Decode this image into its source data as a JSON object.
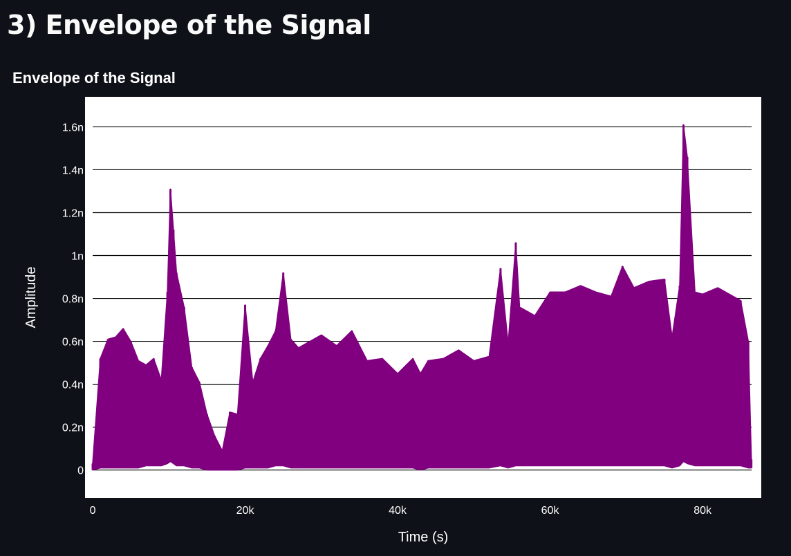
{
  "page": {
    "heading": "3) Envelope of the Signal"
  },
  "colors": {
    "background": "#0e1117",
    "plot_area": "#ffffff",
    "series": "#800080",
    "gridline": "#000000",
    "text": "#ffffff"
  },
  "chart_data": {
    "type": "area",
    "title": "Envelope of the Signal",
    "xlabel": "Time (s)",
    "ylabel": "Amplitude",
    "xlim": [
      -1000,
      87700
    ],
    "ylim": [
      -1.3e-10,
      1.74e-09
    ],
    "x_ticks": [
      0,
      20000,
      40000,
      60000,
      80000
    ],
    "x_tick_labels": [
      "0",
      "20k",
      "40k",
      "60k",
      "80k"
    ],
    "y_ticks": [
      0,
      2e-10,
      4e-10,
      6e-10,
      8e-10,
      1e-09,
      1.2e-09,
      1.4e-09,
      1.6e-09
    ],
    "y_tick_labels": [
      "0",
      "0.2n",
      "0.4n",
      "0.6n",
      "0.8n",
      "1n",
      "1.2n",
      "1.4n",
      "1.6n"
    ],
    "grid": "horizontal",
    "legend": "none",
    "series": [
      {
        "x": [
          0,
          1000,
          2000,
          3000,
          4000,
          5000,
          6000,
          7000,
          8000,
          9000,
          9800,
          10200,
          10600,
          11000,
          12000,
          13000,
          14000,
          15000,
          16000,
          17000,
          18000,
          19000,
          20000,
          21000,
          22000,
          23000,
          24000,
          25000,
          26000,
          27000,
          28000,
          30000,
          32000,
          34000,
          36000,
          38000,
          40000,
          42000,
          43000,
          44000,
          46000,
          48000,
          50000,
          52000,
          53500,
          54500,
          55500,
          56000,
          58000,
          60000,
          62000,
          64000,
          66000,
          68000,
          69500,
          71000,
          73000,
          75000,
          76000,
          77000,
          77500,
          78000,
          79000,
          80000,
          82000,
          84000,
          85000,
          86000,
          86400
        ],
        "upper": [
          3e-11,
          5.2e-10,
          6.1e-10,
          6.2e-10,
          6.6e-10,
          6e-10,
          5.1e-10,
          4.9e-10,
          5.2e-10,
          4.2e-10,
          8.3e-10,
          1.31e-09,
          1.12e-09,
          9.2e-10,
          7.6e-10,
          4.8e-10,
          4.1e-10,
          2.6e-10,
          1.6e-10,
          9e-11,
          2.7e-10,
          2.6e-10,
          7.7e-10,
          4.1e-10,
          5.2e-10,
          5.8e-10,
          6.5e-10,
          9.2e-10,
          6.1e-10,
          5.7e-10,
          5.9e-10,
          6.3e-10,
          5.8e-10,
          6.5e-10,
          5.1e-10,
          5.2e-10,
          4.5e-10,
          5.2e-10,
          4.5e-10,
          5.1e-10,
          5.2e-10,
          5.6e-10,
          5.1e-10,
          5.3e-10,
          9.4e-10,
          5.9e-10,
          1.06e-09,
          7.6e-10,
          7.2e-10,
          8.3e-10,
          8.3e-10,
          8.6e-10,
          8.3e-10,
          8.1e-10,
          9.5e-10,
          8.5e-10,
          8.8e-10,
          8.9e-10,
          6.2e-10,
          8.6e-10,
          1.61e-09,
          1.46e-09,
          8.3e-10,
          8.2e-10,
          8.5e-10,
          8.1e-10,
          7.9e-10,
          6e-10,
          5e-11
        ],
        "lower": [
          0,
          1e-11,
          1e-11,
          1e-11,
          1e-11,
          1e-11,
          1e-11,
          2e-11,
          2e-11,
          2e-11,
          3e-11,
          4e-11,
          3e-11,
          2e-11,
          2e-11,
          1e-11,
          1e-11,
          0,
          0,
          0,
          0,
          0,
          1e-11,
          1e-11,
          1e-11,
          1e-11,
          2e-11,
          2e-11,
          1e-11,
          1e-11,
          1e-11,
          1e-11,
          1e-11,
          1e-11,
          1e-11,
          1e-11,
          1e-11,
          1e-11,
          0,
          1e-11,
          1e-11,
          1e-11,
          1e-11,
          1e-11,
          2e-11,
          1e-11,
          2e-11,
          2e-11,
          2e-11,
          2e-11,
          2e-11,
          2e-11,
          2e-11,
          2e-11,
          2e-11,
          2e-11,
          2e-11,
          2e-11,
          1e-11,
          2e-11,
          4e-11,
          3e-11,
          2e-11,
          2e-11,
          2e-11,
          2e-11,
          2e-11,
          1e-11,
          1e-11
        ]
      }
    ]
  }
}
